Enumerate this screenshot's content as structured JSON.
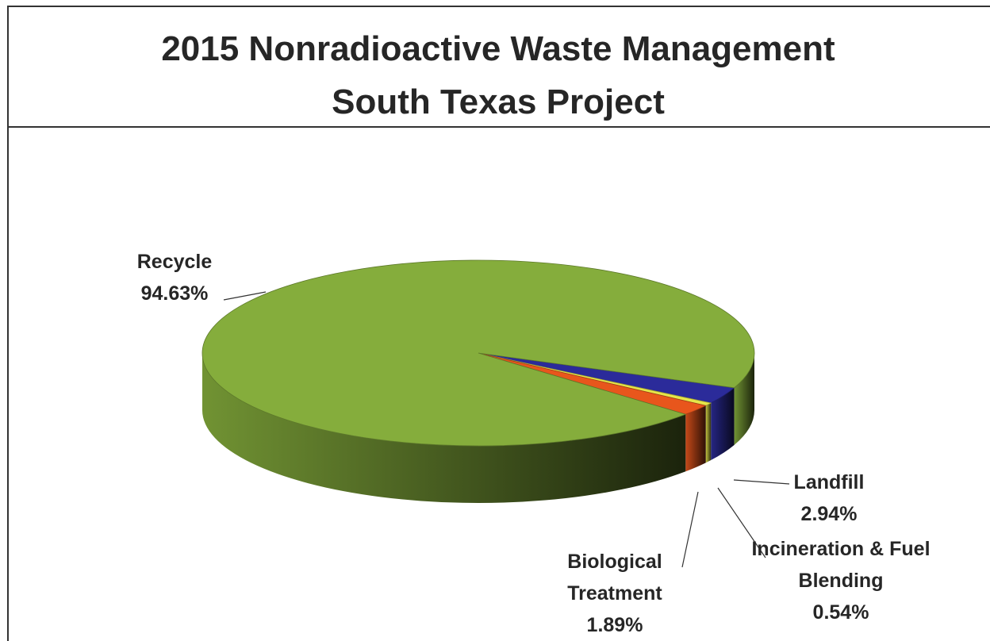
{
  "chart_data": {
    "type": "pie",
    "title": "2015 Nonradioactive Waste Management",
    "subtitle": "South Texas Project",
    "categories": [
      "Landfill",
      "Incineration & Fuel Blending",
      "Biological Treatment",
      "Recycle"
    ],
    "values": [
      2.94,
      0.54,
      1.89,
      94.63
    ],
    "value_labels": [
      "2.94%",
      "0.54%",
      "1.89%",
      "94.63%"
    ],
    "colors": [
      "#2b2b9a",
      "#e6e64a",
      "#e8561c",
      "#85ad3c"
    ]
  }
}
